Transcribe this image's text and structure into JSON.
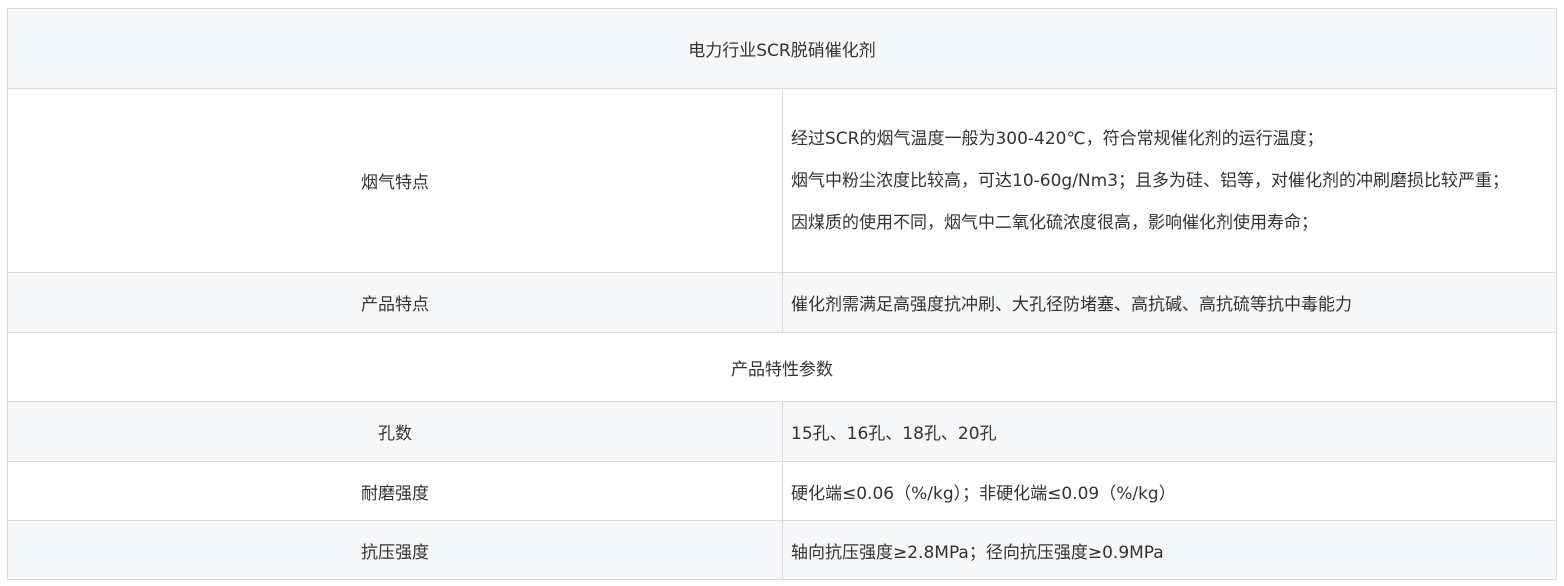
{
  "title": "电力行业SCR脱硝催化剂",
  "rows": {
    "flue_gas": {
      "label": "烟气特点",
      "lines": [
        "经过SCR的烟气温度一般为300-420℃，符合常规催化剂的运行温度；",
        "烟气中粉尘浓度比较高，可达10-60g/Nm3；且多为硅、铝等，对催化剂的冲刷磨损比较严重；",
        "因煤质的使用不同，烟气中二氧化硫浓度很高，影响催化剂使用寿命；"
      ]
    },
    "product": {
      "label": "产品特点",
      "value": "催化剂需满足高强度抗冲刷、大孔径防堵塞、高抗碱、高抗硫等抗中毒能力"
    },
    "params_title": "产品特性参数",
    "holes": {
      "label": "孔数",
      "value": "15孔、16孔、18孔、20孔"
    },
    "abrasion": {
      "label": "耐磨强度",
      "value": "硬化端≤0.06（%/kg）；非硬化端≤0.09（%/kg）"
    },
    "compression": {
      "label": "抗压强度",
      "value": "轴向抗压强度≥2.8MPa；径向抗压强度≥0.9MPa"
    }
  }
}
